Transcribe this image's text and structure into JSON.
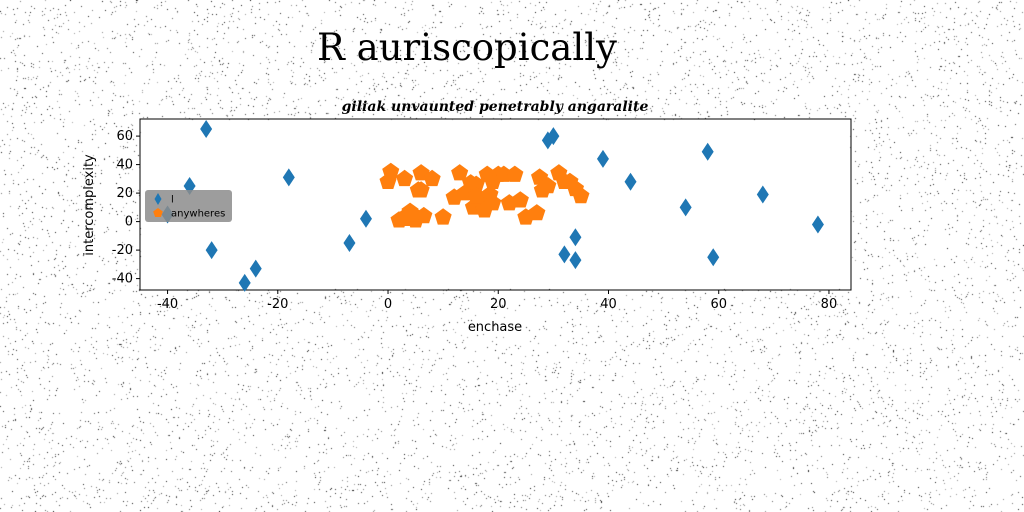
{
  "page": {
    "title": "R auriscopically"
  },
  "chart_data": {
    "type": "scatter",
    "title": "giliak unvaunted penetrably angaralite",
    "xlabel": "enchase",
    "ylabel": "intercomplexity",
    "xlim": [
      -45,
      84
    ],
    "ylim": [
      -48,
      72
    ],
    "xticks": [
      -40,
      -20,
      0,
      20,
      40,
      60,
      80
    ],
    "yticks": [
      -40,
      -20,
      0,
      20,
      40,
      60
    ],
    "grid": false,
    "legend_position": "center-left",
    "series": [
      {
        "name": "l",
        "marker": "thin_diamond",
        "color": "#1f77b4",
        "x": [
          -33,
          -36,
          -40,
          -32,
          -26,
          -24,
          -18,
          -7,
          -4,
          29,
          30,
          32,
          34,
          34,
          39,
          44,
          54,
          58,
          59,
          68,
          78
        ],
        "y": [
          65,
          25,
          5,
          -20,
          -43,
          -33,
          31,
          -15,
          2,
          57,
          60,
          -23,
          -27,
          -11,
          44,
          28,
          10,
          49,
          -25,
          19,
          -2
        ]
      },
      {
        "name": "anywheres",
        "marker": "pentagon",
        "color": "#ff7f0e",
        "x": [
          0,
          0.5,
          2,
          3,
          3.5,
          4,
          5,
          5.5,
          6,
          6.5,
          8,
          10,
          12,
          13,
          14,
          15,
          15.5,
          16,
          17,
          17.5,
          18,
          18.5,
          19,
          20,
          21,
          22,
          23,
          24,
          25,
          27,
          27.5,
          28,
          29,
          31,
          32,
          33,
          34,
          35,
          3,
          4.5,
          6,
          16,
          19
        ],
        "y": [
          28,
          35,
          1,
          30,
          2,
          7,
          1,
          22,
          34,
          4,
          30,
          3,
          17,
          34,
          20,
          27,
          10,
          26,
          13,
          8,
          33,
          19,
          28,
          33,
          33,
          13,
          33,
          15,
          3,
          6,
          31,
          22,
          25,
          34,
          28,
          28,
          23,
          18,
          3,
          5,
          22,
          18,
          13
        ]
      }
    ]
  }
}
